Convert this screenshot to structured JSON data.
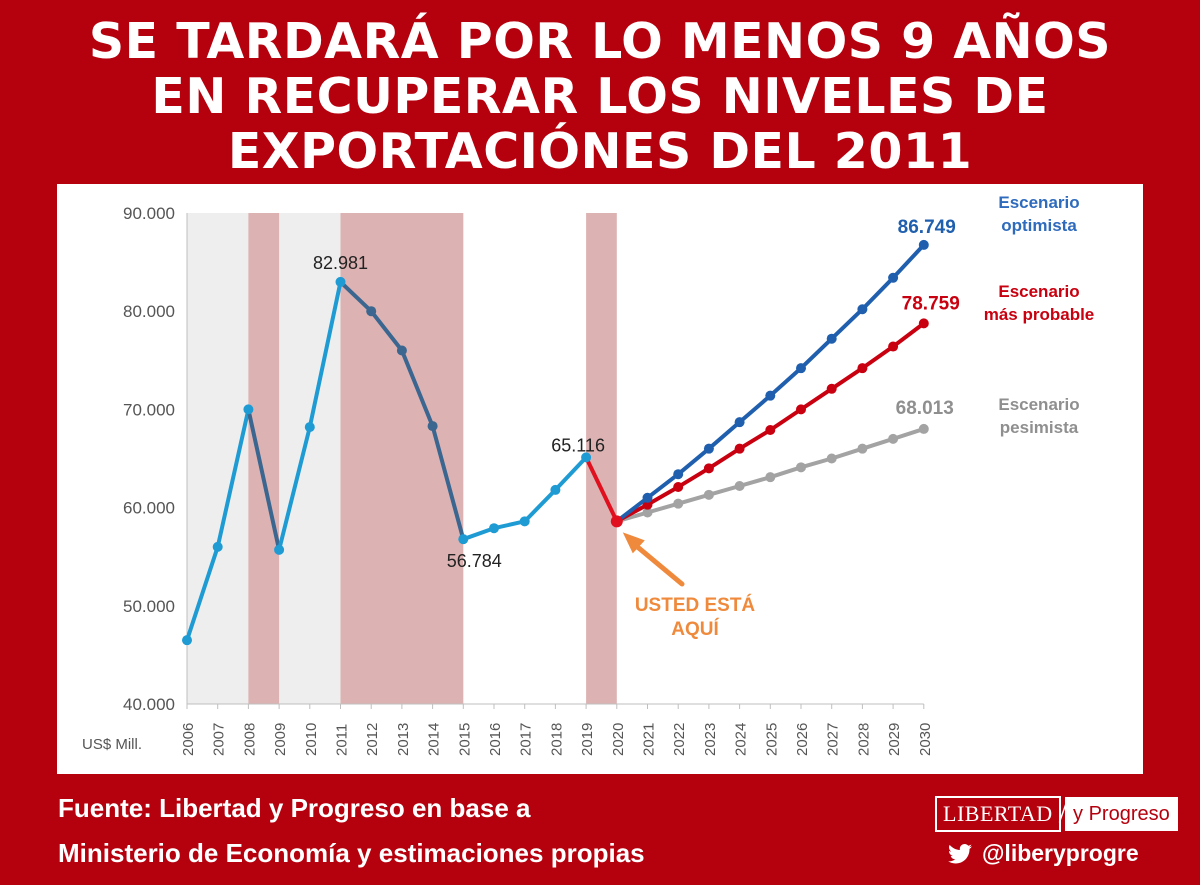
{
  "title": {
    "line1": "SE TARDARÁ POR LO MENOS 9 AÑOS",
    "line2": "EN RECUPERAR LOS NIVELES DE",
    "line3": "EXPORTACIÓNES DEL 2011"
  },
  "source": {
    "line1": "Fuente: Libertad y Progreso en base a",
    "line2": "Ministerio de Economía y estimaciones propias"
  },
  "logo": {
    "left": "LIBERTAD",
    "slash": "/",
    "right": "y Progreso"
  },
  "twitter": {
    "handle": "@liberyprogre",
    "icon": "twitter-bird-icon"
  },
  "colors": {
    "background": "#b5000e",
    "historical_light": "#1f9bd4",
    "historical_dark": "#3a6690",
    "drop_2020": "#e0101e",
    "optimistic": "#1f5fae",
    "probable": "#c8000f",
    "pessimistic": "#a3a3a3",
    "recession_band": "#dcb2b2",
    "arrow": "#ef8a3c"
  },
  "chart_data": {
    "type": "line",
    "ylabel": "US$ Mill.",
    "ylim": [
      40000,
      90000
    ],
    "yticks": [
      "40.000",
      "50.000",
      "60.000",
      "70.000",
      "80.000",
      "90.000"
    ],
    "x": [
      "2006",
      "2007",
      "2008",
      "2009",
      "2010",
      "2011",
      "2012",
      "2013",
      "2014",
      "2015",
      "2016",
      "2017",
      "2018",
      "2019",
      "2020",
      "2021",
      "2022",
      "2023",
      "2024",
      "2025",
      "2026",
      "2027",
      "2028",
      "2029",
      "2030"
    ],
    "series": [
      {
        "key": "historical",
        "x": [
          "2006",
          "2007",
          "2008",
          "2009",
          "2010",
          "2011",
          "2012",
          "2013",
          "2014",
          "2015",
          "2016",
          "2017",
          "2018",
          "2019"
        ],
        "values": [
          46500,
          56000,
          70000,
          55700,
          68200,
          82981,
          80000,
          76000,
          68300,
          56784,
          57900,
          58600,
          61800,
          65116
        ]
      },
      {
        "key": "drop",
        "x": [
          "2019",
          "2020"
        ],
        "values": [
          65116,
          58600
        ]
      },
      {
        "key": "optimistic",
        "name": "Escenario optimista",
        "x": [
          "2020",
          "2021",
          "2022",
          "2023",
          "2024",
          "2025",
          "2026",
          "2027",
          "2028",
          "2029",
          "2030"
        ],
        "values": [
          58600,
          61000,
          63400,
          66000,
          68700,
          71400,
          74200,
          77200,
          80200,
          83400,
          86749
        ]
      },
      {
        "key": "probable",
        "name": "Escenario más probable",
        "x": [
          "2020",
          "2021",
          "2022",
          "2023",
          "2024",
          "2025",
          "2026",
          "2027",
          "2028",
          "2029",
          "2030"
        ],
        "values": [
          58600,
          60300,
          62100,
          64000,
          66000,
          67900,
          70000,
          72100,
          74200,
          76400,
          78759
        ]
      },
      {
        "key": "pessimistic",
        "name": "Escenario pesimista",
        "x": [
          "2020",
          "2021",
          "2022",
          "2023",
          "2024",
          "2025",
          "2026",
          "2027",
          "2028",
          "2029",
          "2030"
        ],
        "values": [
          58600,
          59500,
          60400,
          61300,
          62200,
          63100,
          64100,
          65000,
          66000,
          67000,
          68013
        ]
      }
    ],
    "recession_bands": [
      [
        "2008",
        "2009"
      ],
      [
        "2011",
        "2015"
      ],
      [
        "2019",
        "2020"
      ]
    ],
    "shaded_region": [
      "2006",
      "2015"
    ],
    "annotations": {
      "peak_2011": "82.981",
      "low_2015": "56.784",
      "value_2019": "65.116",
      "end_optimistic": "86.749",
      "end_probable": "78.759",
      "end_pessimistic": "68.013",
      "label_optimistic_1": "Escenario",
      "label_optimistic_2": "optimista",
      "label_probable_1": "Escenario",
      "label_probable_2": "más probable",
      "label_pessimistic_1": "Escenario",
      "label_pessimistic_2": "pesimista",
      "you_are_here_1": "USTED ESTÁ",
      "you_are_here_2": "AQUÍ"
    },
    "grid": false,
    "legend": "inline-right"
  }
}
